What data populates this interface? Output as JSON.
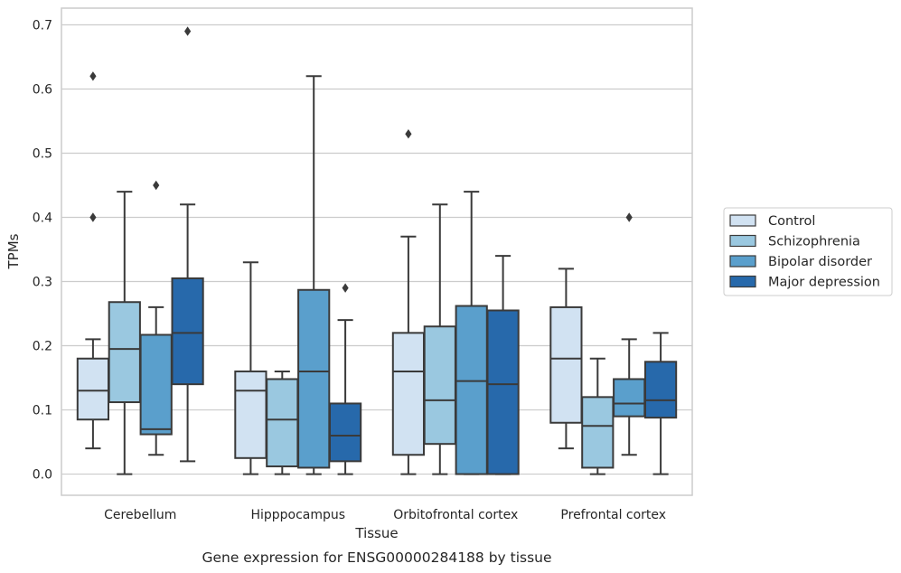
{
  "chart_data": {
    "type": "box",
    "title": "",
    "caption": "Gene expression for ENSG00000284188 by tissue",
    "xlabel": "Tissue",
    "ylabel": "TPMs",
    "ylim": [
      -0.033,
      0.726
    ],
    "yticks": [
      0.0,
      0.1,
      0.2,
      0.3,
      0.4,
      0.5,
      0.6,
      0.7
    ],
    "ytick_labels": [
      "0.0",
      "0.1",
      "0.2",
      "0.3",
      "0.4",
      "0.5",
      "0.6",
      "0.7"
    ],
    "grid": "horizontal",
    "legend_position": "right",
    "categories": [
      "Cerebellum",
      "Hipppocampus",
      "Orbitofrontal cortex",
      "Prefrontal cortex"
    ],
    "series": [
      {
        "name": "Control",
        "color": "#d1e2f2",
        "boxes": [
          {
            "whislo": 0.04,
            "q1": 0.085,
            "med": 0.13,
            "q3": 0.18,
            "whishi": 0.21,
            "fliers": [
              0.4,
              0.62
            ]
          },
          {
            "whislo": 0.0,
            "q1": 0.025,
            "med": 0.13,
            "q3": 0.16,
            "whishi": 0.33,
            "fliers": []
          },
          {
            "whislo": 0.0,
            "q1": 0.03,
            "med": 0.16,
            "q3": 0.22,
            "whishi": 0.37,
            "fliers": [
              0.53
            ]
          },
          {
            "whislo": 0.04,
            "q1": 0.08,
            "med": 0.18,
            "q3": 0.26,
            "whishi": 0.32,
            "fliers": []
          }
        ]
      },
      {
        "name": "Schizophrenia",
        "color": "#9ac8e0",
        "boxes": [
          {
            "whislo": 0.0,
            "q1": 0.112,
            "med": 0.195,
            "q3": 0.268,
            "whishi": 0.44,
            "fliers": []
          },
          {
            "whislo": 0.0,
            "q1": 0.012,
            "med": 0.085,
            "q3": 0.148,
            "whishi": 0.16,
            "fliers": []
          },
          {
            "whislo": 0.0,
            "q1": 0.047,
            "med": 0.115,
            "q3": 0.23,
            "whishi": 0.42,
            "fliers": []
          },
          {
            "whislo": 0.0,
            "q1": 0.01,
            "med": 0.075,
            "q3": 0.12,
            "whishi": 0.18,
            "fliers": []
          }
        ]
      },
      {
        "name": "Bipolar disorder",
        "color": "#5a9fcc",
        "boxes": [
          {
            "whislo": 0.03,
            "q1": 0.062,
            "med": 0.07,
            "q3": 0.217,
            "whishi": 0.26,
            "fliers": [
              0.45
            ]
          },
          {
            "whislo": 0.0,
            "q1": 0.01,
            "med": 0.16,
            "q3": 0.287,
            "whishi": 0.62,
            "fliers": []
          },
          {
            "whislo": 0.0,
            "q1": 0.0,
            "med": 0.145,
            "q3": 0.262,
            "whishi": 0.44,
            "fliers": []
          },
          {
            "whislo": 0.03,
            "q1": 0.09,
            "med": 0.11,
            "q3": 0.148,
            "whishi": 0.21,
            "fliers": [
              0.4
            ]
          }
        ]
      },
      {
        "name": "Major depression",
        "color": "#2769ab",
        "boxes": [
          {
            "whislo": 0.02,
            "q1": 0.14,
            "med": 0.22,
            "q3": 0.305,
            "whishi": 0.42,
            "fliers": [
              0.69
            ]
          },
          {
            "whislo": 0.0,
            "q1": 0.02,
            "med": 0.06,
            "q3": 0.11,
            "whishi": 0.24,
            "fliers": [
              0.29
            ]
          },
          {
            "whislo": 0.0,
            "q1": 0.0,
            "med": 0.14,
            "q3": 0.255,
            "whishi": 0.34,
            "fliers": []
          },
          {
            "whislo": 0.0,
            "q1": 0.088,
            "med": 0.115,
            "q3": 0.175,
            "whishi": 0.22,
            "fliers": []
          }
        ]
      }
    ]
  }
}
